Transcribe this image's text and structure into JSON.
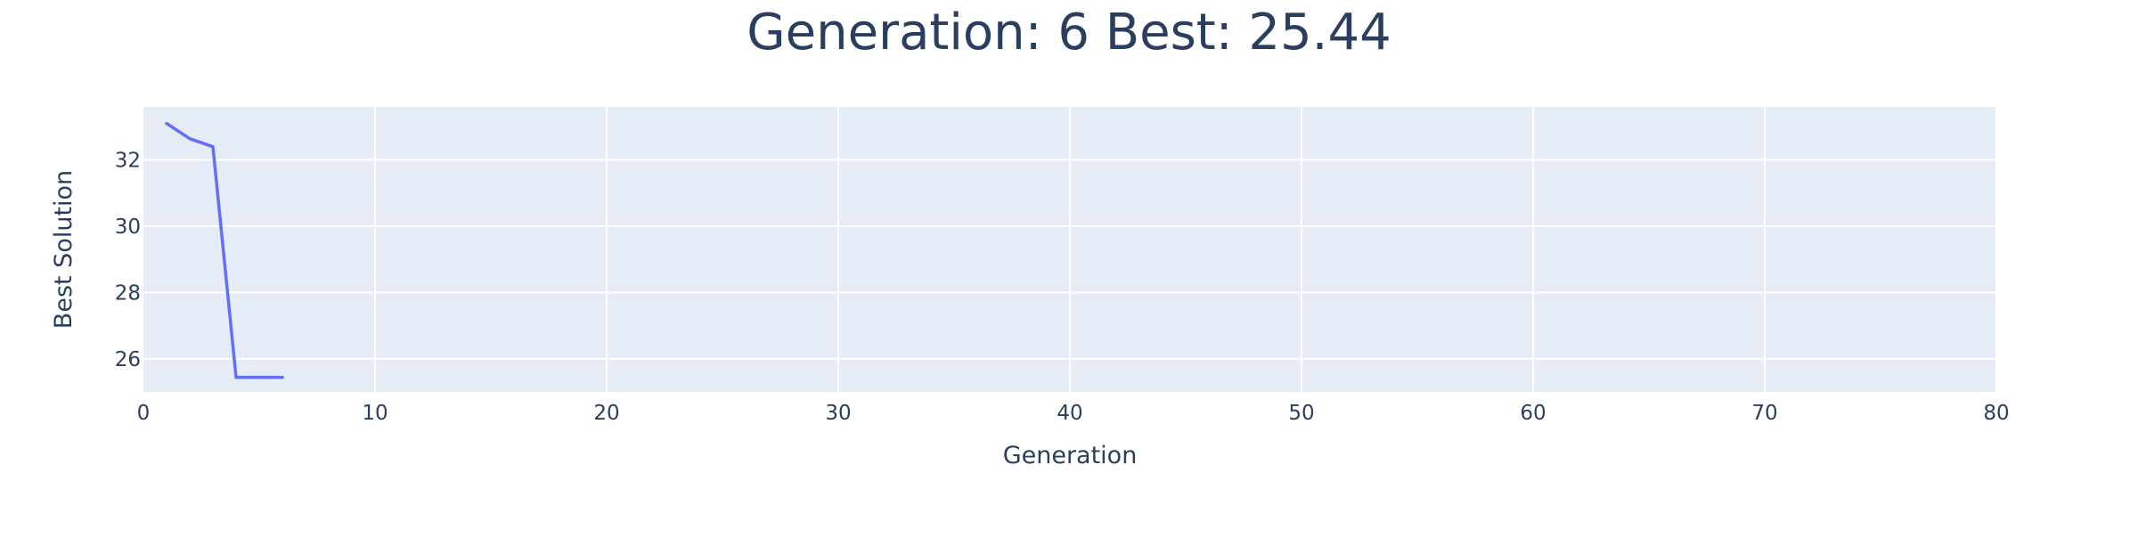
{
  "chart_data": {
    "type": "line",
    "title": "Generation: 6 Best: 25.44",
    "xlabel": "Generation",
    "ylabel": "Best Solution",
    "xlim": [
      0,
      80
    ],
    "ylim": [
      25,
      33.6
    ],
    "x_ticks": [
      0,
      10,
      20,
      30,
      40,
      50,
      60,
      70,
      80
    ],
    "y_ticks": [
      26,
      28,
      30,
      32
    ],
    "grid": true,
    "legend": "none",
    "series": [
      {
        "x": [
          1,
          2,
          3,
          4,
          5,
          6
        ],
        "y": [
          33.1,
          32.64,
          32.4,
          25.44,
          25.44,
          25.44
        ]
      }
    ]
  },
  "colors": {
    "plot_background": "#E5ECF6",
    "grid": "#ffffff",
    "line": "#636EFA",
    "text": "#2A3F5F"
  }
}
